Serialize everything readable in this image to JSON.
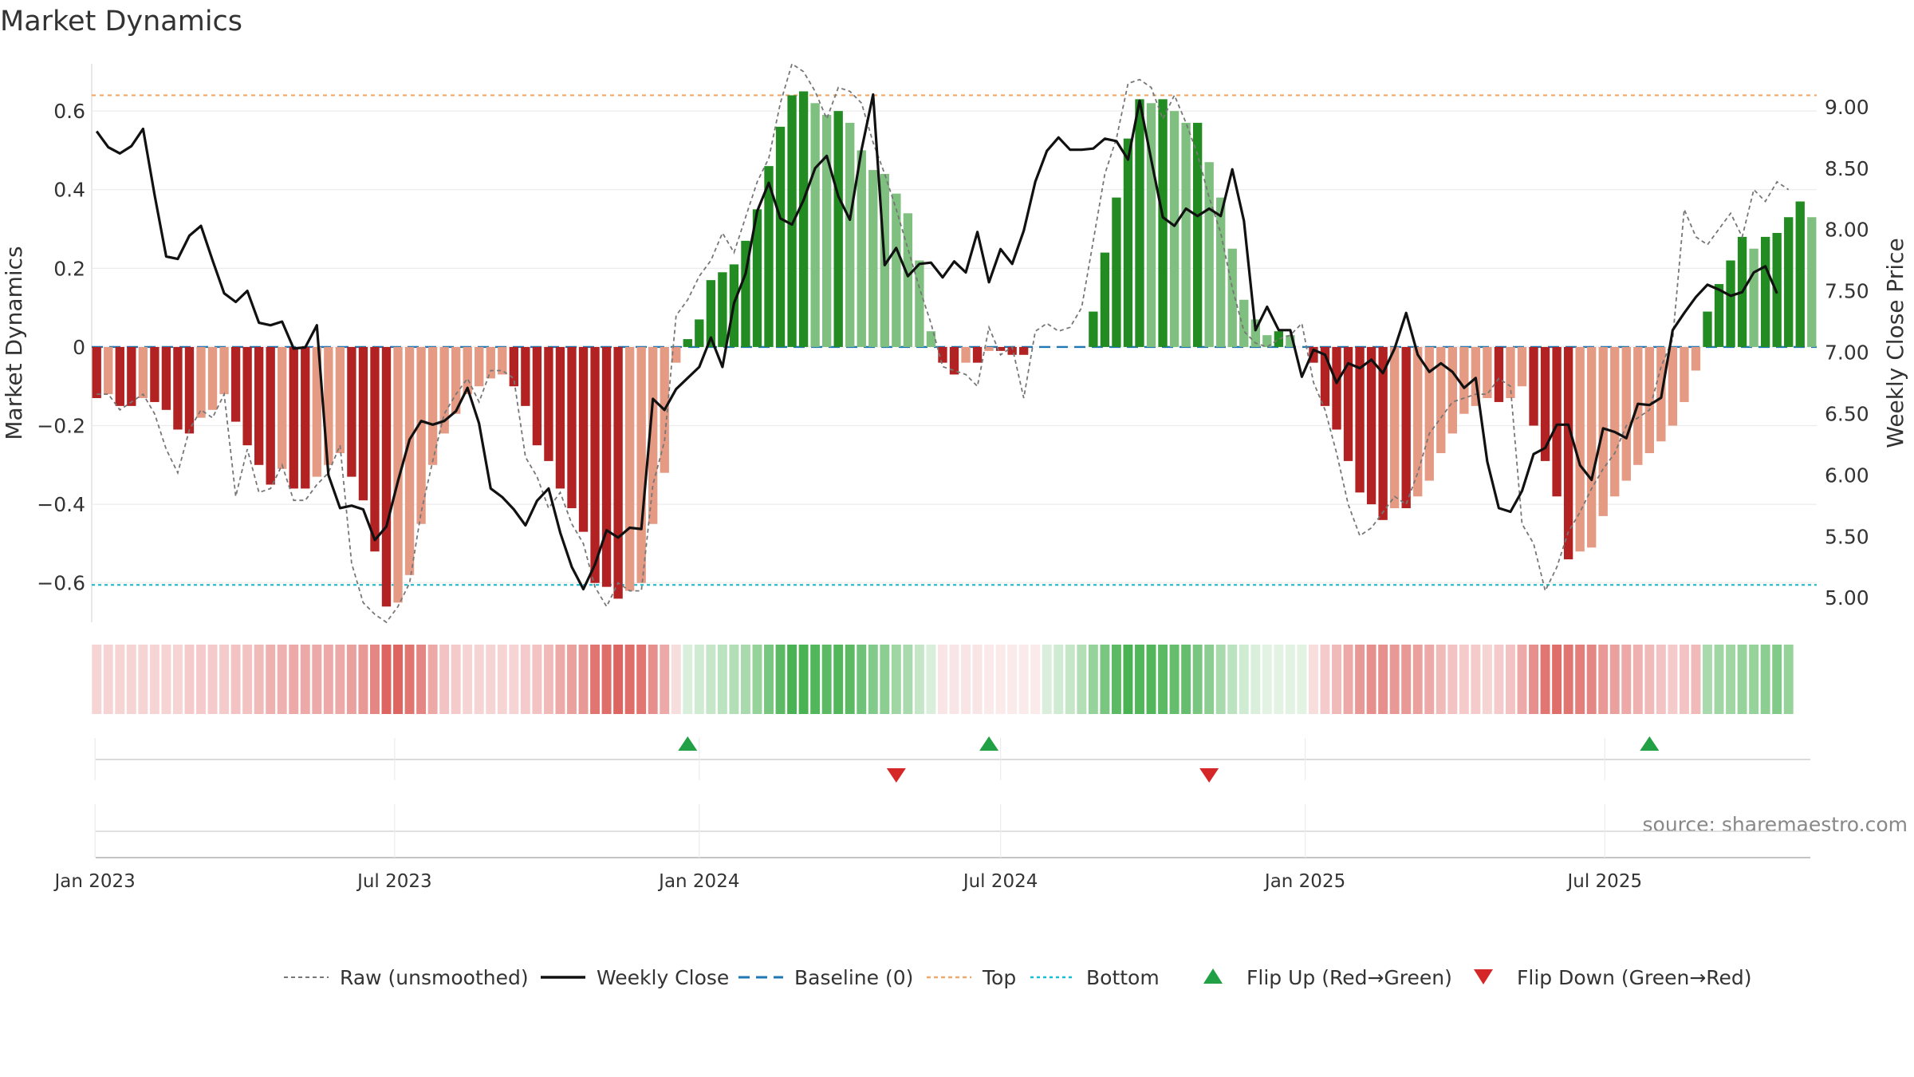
{
  "chart_data": {
    "type": "bar",
    "title": "Market Dynamics",
    "ylabel_left": "Market Dynamics",
    "ylabel_right": "Weekly Close Price",
    "source": "source: sharemaestro.com",
    "x_start": "2023-01-02",
    "x_step_days": 7,
    "ylim_left": [
      -0.7,
      0.72
    ],
    "ylim_right": [
      4.8,
      9.35
    ],
    "yticks_left": [
      "0.6",
      "0.4",
      "0.2",
      "0",
      "−0.2",
      "−0.4",
      "−0.6"
    ],
    "yticks_left_values": [
      0.6,
      0.4,
      0.2,
      0,
      -0.2,
      -0.4,
      -0.6
    ],
    "yticks_right": [
      "9.00",
      "8.50",
      "8.00",
      "7.50",
      "7.00",
      "6.50",
      "6.00",
      "5.50",
      "5.00"
    ],
    "yticks_right_values": [
      9.0,
      8.5,
      8.0,
      7.5,
      7.0,
      6.5,
      6.0,
      5.5,
      5.0
    ],
    "xticks": [
      {
        "label": "Jan 2023",
        "date": "2023-01-01"
      },
      {
        "label": "Jul 2023",
        "date": "2023-07-01"
      },
      {
        "label": "Jan 2024",
        "date": "2024-01-01"
      },
      {
        "label": "Jul 2024",
        "date": "2024-07-01"
      },
      {
        "label": "Jan 2025",
        "date": "2025-01-01"
      },
      {
        "label": "Jul 2025",
        "date": "2025-07-01"
      }
    ],
    "top": 0.64,
    "bottom": -0.605,
    "baseline": 0,
    "histogram": [
      -0.13,
      -0.12,
      -0.15,
      -0.15,
      -0.13,
      -0.14,
      -0.16,
      -0.21,
      -0.22,
      -0.18,
      -0.16,
      -0.12,
      -0.19,
      -0.25,
      -0.3,
      -0.35,
      -0.31,
      -0.36,
      -0.36,
      -0.33,
      -0.3,
      -0.27,
      -0.33,
      -0.39,
      -0.52,
      -0.66,
      -0.65,
      -0.58,
      -0.45,
      -0.3,
      -0.22,
      -0.17,
      -0.12,
      -0.1,
      -0.08,
      -0.07,
      -0.1,
      -0.15,
      -0.25,
      -0.29,
      -0.36,
      -0.41,
      -0.47,
      -0.6,
      -0.61,
      -0.64,
      -0.62,
      -0.6,
      -0.45,
      -0.32,
      -0.04,
      0.02,
      0.07,
      0.17,
      0.19,
      0.21,
      0.27,
      0.35,
      0.46,
      0.56,
      0.64,
      0.65,
      0.62,
      0.59,
      0.6,
      0.57,
      0.5,
      0.45,
      0.44,
      0.39,
      0.34,
      0.22,
      0.04,
      -0.04,
      -0.07,
      -0.04,
      -0.04,
      -0.01,
      -0.01,
      -0.02,
      -0.02,
      0.0,
      0.0,
      0.0,
      0.0,
      0.0,
      0.09,
      0.24,
      0.38,
      0.53,
      0.63,
      0.62,
      0.63,
      0.6,
      0.57,
      0.57,
      0.47,
      0.38,
      0.25,
      0.12,
      0.07,
      0.03,
      0.04,
      0.03,
      0.0,
      -0.04,
      -0.15,
      -0.21,
      -0.29,
      -0.37,
      -0.4,
      -0.44,
      -0.41,
      -0.41,
      -0.38,
      -0.34,
      -0.27,
      -0.22,
      -0.17,
      -0.15,
      -0.13,
      -0.14,
      -0.13,
      -0.1,
      -0.2,
      -0.29,
      -0.38,
      -0.54,
      -0.52,
      -0.51,
      -0.43,
      -0.38,
      -0.34,
      -0.3,
      -0.27,
      -0.24,
      -0.2,
      -0.14,
      -0.06,
      0.09,
      0.16,
      0.22,
      0.28,
      0.25,
      0.28,
      0.29,
      0.33,
      0.37,
      0.33
    ],
    "histogram_colors": {
      "strong_red": "#b22222",
      "light_red": "#e59a84",
      "strong_green": "#228b22",
      "light_green": "#7fbf7f"
    },
    "raw_unsmoothed": [
      -0.12,
      -0.12,
      -0.16,
      -0.14,
      -0.12,
      -0.17,
      -0.26,
      -0.32,
      -0.21,
      -0.16,
      -0.18,
      -0.12,
      -0.38,
      -0.26,
      -0.37,
      -0.36,
      -0.3,
      -0.39,
      -0.39,
      -0.35,
      -0.32,
      -0.25,
      -0.55,
      -0.65,
      -0.68,
      -0.7,
      -0.66,
      -0.6,
      -0.42,
      -0.29,
      -0.17,
      -0.12,
      -0.08,
      -0.14,
      -0.06,
      -0.06,
      -0.08,
      -0.28,
      -0.33,
      -0.41,
      -0.37,
      -0.45,
      -0.5,
      -0.61,
      -0.66,
      -0.6,
      -0.62,
      -0.62,
      -0.35,
      -0.24,
      0.08,
      0.12,
      0.18,
      0.22,
      0.29,
      0.24,
      0.33,
      0.42,
      0.48,
      0.62,
      0.72,
      0.7,
      0.65,
      0.58,
      0.66,
      0.65,
      0.62,
      0.52,
      0.44,
      0.35,
      0.25,
      0.15,
      0.06,
      -0.05,
      -0.06,
      -0.07,
      -0.1,
      0.05,
      -0.02,
      0.0,
      -0.13,
      0.04,
      0.06,
      0.04,
      0.05,
      0.1,
      0.27,
      0.44,
      0.53,
      0.67,
      0.68,
      0.66,
      0.58,
      0.64,
      0.57,
      0.49,
      0.38,
      0.29,
      0.15,
      0.04,
      0.01,
      0.0,
      0.02,
      0.03,
      0.06,
      -0.09,
      -0.16,
      -0.27,
      -0.4,
      -0.48,
      -0.46,
      -0.42,
      -0.38,
      -0.4,
      -0.32,
      -0.22,
      -0.18,
      -0.14,
      -0.13,
      -0.12,
      -0.12,
      -0.08,
      -0.1,
      -0.45,
      -0.5,
      -0.62,
      -0.56,
      -0.47,
      -0.42,
      -0.36,
      -0.31,
      -0.27,
      -0.2,
      -0.18,
      -0.16,
      -0.05,
      0.02,
      0.35,
      0.28,
      0.26,
      0.3,
      0.34,
      0.28,
      0.4,
      0.37,
      0.42,
      0.4
    ],
    "weekly_close": [
      8.8,
      8.67,
      8.62,
      8.68,
      8.82,
      8.28,
      7.78,
      7.76,
      7.95,
      8.03,
      7.75,
      7.48,
      7.41,
      7.5,
      7.24,
      7.22,
      7.25,
      7.03,
      7.04,
      7.22,
      6.0,
      5.73,
      5.75,
      5.72,
      5.47,
      5.58,
      5.95,
      6.29,
      6.44,
      6.41,
      6.44,
      6.52,
      6.71,
      6.42,
      5.89,
      5.82,
      5.72,
      5.59,
      5.79,
      5.89,
      5.53,
      5.25,
      5.07,
      5.27,
      5.55,
      5.49,
      5.57,
      5.56,
      6.62,
      6.53,
      6.7,
      6.79,
      6.88,
      7.12,
      6.88,
      7.4,
      7.64,
      8.15,
      8.38,
      8.09,
      8.04,
      8.24,
      8.5,
      8.6,
      8.27,
      8.08,
      8.65,
      9.1,
      7.71,
      7.85,
      7.62,
      7.72,
      7.73,
      7.61,
      7.74,
      7.65,
      7.98,
      7.57,
      7.84,
      7.72,
      7.99,
      8.39,
      8.64,
      8.75,
      8.65,
      8.65,
      8.66,
      8.74,
      8.72,
      8.57,
      9.05,
      8.57,
      8.1,
      8.03,
      8.17,
      8.11,
      8.17,
      8.11,
      8.49,
      8.07,
      7.18,
      7.37,
      7.18,
      7.18,
      6.8,
      7.02,
      6.98,
      6.75,
      6.91,
      6.87,
      6.94,
      6.83,
      7.03,
      7.32,
      6.98,
      6.84,
      6.91,
      6.84,
      6.71,
      6.79,
      6.11,
      5.73,
      5.7,
      5.87,
      6.17,
      6.22,
      6.41,
      6.41,
      6.08,
      5.96,
      6.38,
      6.35,
      6.3,
      6.58,
      6.57,
      6.63,
      7.18,
      7.32,
      7.45,
      7.55,
      7.51,
      7.46,
      7.49,
      7.65,
      7.7,
      7.48
    ],
    "color_strip": [
      0.25,
      0.25,
      0.25,
      0.25,
      0.25,
      0.25,
      0.25,
      0.25,
      0.3,
      0.3,
      0.3,
      0.3,
      0.35,
      0.35,
      0.4,
      0.45,
      0.45,
      0.5,
      0.5,
      0.5,
      0.5,
      0.5,
      0.55,
      0.6,
      0.7,
      0.9,
      0.9,
      0.8,
      0.7,
      0.5,
      0.35,
      0.3,
      0.25,
      0.25,
      0.25,
      0.25,
      0.25,
      0.3,
      0.35,
      0.4,
      0.5,
      0.55,
      0.6,
      0.8,
      0.85,
      0.9,
      0.85,
      0.8,
      0.65,
      0.5,
      0.2,
      0.2,
      0.25,
      0.3,
      0.35,
      0.4,
      0.45,
      0.55,
      0.7,
      0.85,
      0.95,
      0.95,
      0.9,
      0.85,
      0.9,
      0.85,
      0.75,
      0.65,
      0.6,
      0.5,
      0.45,
      0.3,
      0.2,
      0.15,
      0.15,
      0.15,
      0.15,
      0.12,
      0.12,
      0.12,
      0.12,
      0.12,
      0.2,
      0.25,
      0.3,
      0.4,
      0.55,
      0.7,
      0.85,
      0.95,
      0.9,
      0.9,
      0.85,
      0.8,
      0.8,
      0.7,
      0.6,
      0.45,
      0.35,
      0.25,
      0.2,
      0.15,
      0.15,
      0.15,
      0.15,
      0.2,
      0.3,
      0.4,
      0.5,
      0.6,
      0.65,
      0.65,
      0.6,
      0.6,
      0.55,
      0.5,
      0.4,
      0.35,
      0.3,
      0.3,
      0.25,
      0.3,
      0.35,
      0.5,
      0.65,
      0.8,
      0.85,
      0.8,
      0.75,
      0.7,
      0.6,
      0.55,
      0.5,
      0.45,
      0.4,
      0.35,
      0.3,
      0.35,
      0.4,
      0.45,
      0.5,
      0.5,
      0.55,
      0.55,
      0.6,
      0.65,
      0.55
    ],
    "flip_up_dates": [
      "2023-12-25",
      "2024-06-24",
      "2025-07-28"
    ],
    "flip_down_dates": [
      "2024-04-29",
      "2024-11-04"
    ],
    "colors": {
      "red_strip": "#d9534f",
      "green_strip": "#3fae49",
      "flip_up": "#22a045",
      "flip_down": "#d62728",
      "weekly_close": "#111111",
      "raw": "#777777",
      "baseline": "#1f77b4",
      "top": "#f0a868",
      "bottom": "#17becf"
    },
    "legend": {
      "placement": "bottom",
      "items": [
        {
          "label": "Raw (unsmoothed)",
          "style": "raw"
        },
        {
          "label": "Weekly Close",
          "style": "close"
        },
        {
          "label": "Baseline (0)",
          "style": "baseline"
        },
        {
          "label": "Top",
          "style": "top"
        },
        {
          "label": "Bottom",
          "style": "bottom"
        },
        {
          "label": "Flip Up (Red→Green)",
          "style": "flip_up"
        },
        {
          "label": "Flip Down (Green→Red)",
          "style": "flip_down"
        }
      ]
    }
  }
}
